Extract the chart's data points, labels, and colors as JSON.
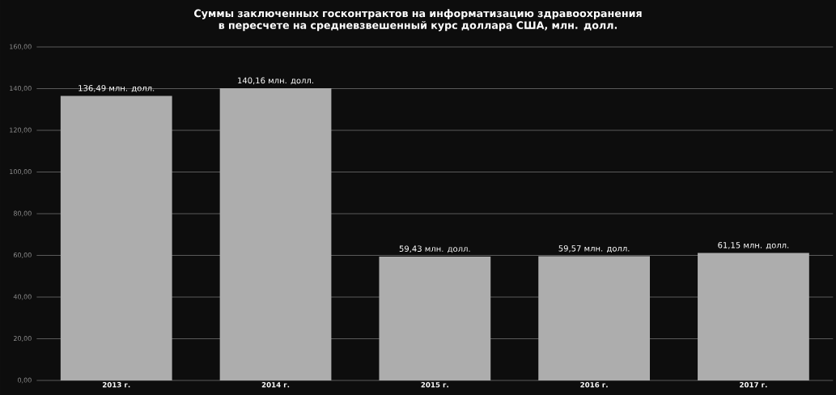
{
  "chart_data": {
    "type": "bar",
    "title": "Суммы заключенных госконтрактов на информатизацию здравоохранения в пересчете на средневзвешенный курс доллара США, млн. долл.",
    "categories": [
      "2013 г.",
      "2014 г.",
      "2015 г.",
      "2016 г.",
      "2017 г."
    ],
    "values": [
      136.49,
      140.16,
      59.43,
      59.57,
      61.15
    ],
    "value_labels": [
      "136,49 млн. долл.",
      "140,16 млн. долл.",
      "59,43 млн. долл.",
      "59,57 млн. долл.",
      "61,15 млн. долл."
    ],
    "color": "#adadad",
    "ylim": [
      0,
      160
    ],
    "yticks": [
      {
        "value": 0,
        "label": "0,00"
      },
      {
        "value": 20,
        "label": "20,00"
      },
      {
        "value": 40,
        "label": "40,00"
      },
      {
        "value": 60,
        "label": "60,00"
      },
      {
        "value": 80,
        "label": "80,00"
      },
      {
        "value": 100,
        "label": "100,00"
      },
      {
        "value": 120,
        "label": "120,00"
      },
      {
        "value": 140,
        "label": "140,00"
      },
      {
        "value": 160,
        "label": "160,00"
      }
    ],
    "grid": "y"
  }
}
